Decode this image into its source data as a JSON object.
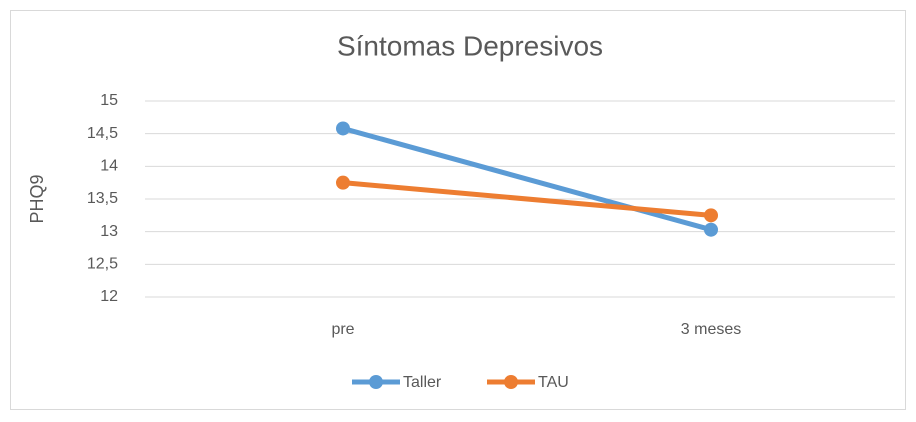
{
  "chart_data": {
    "type": "line",
    "title": "Síntomas Depresivos",
    "y_label": "PHQ9",
    "categories": [
      "pre",
      "3 meses"
    ],
    "series": [
      {
        "name": "Taller",
        "color": "#5b9bd5",
        "values": [
          14.58,
          13.03
        ]
      },
      {
        "name": "TAU",
        "color": "#ed7d31",
        "values": [
          13.75,
          13.25
        ]
      }
    ],
    "ylim": [
      12,
      15
    ],
    "yticks": [
      12,
      {
        "value": 12.5,
        "label": "12,5"
      },
      13,
      {
        "value": 13.5,
        "label": "13,5"
      },
      14,
      {
        "value": 14.5,
        "label": "14,5"
      },
      15
    ],
    "grid": true,
    "legend": "bottom"
  }
}
